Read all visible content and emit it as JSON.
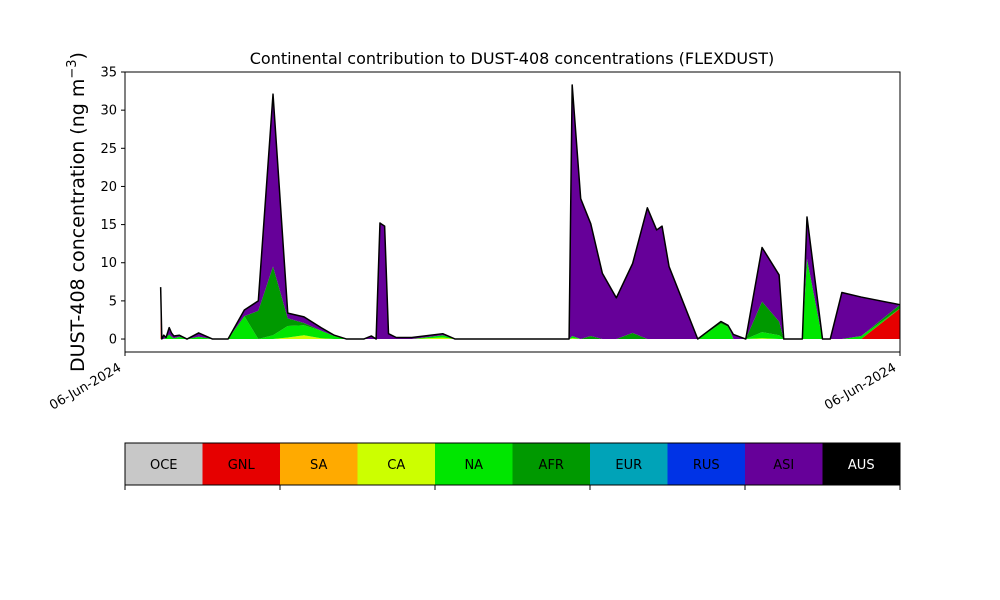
{
  "chart_data": {
    "type": "area",
    "title": "Continental contribution to DUST-408 concentrations (FLEXDUST)",
    "ylabel": "DUST-408 concentration (ng m⁻³)",
    "ylabel_main": "DUST-408 concentration (ng m",
    "ylabel_sup": "−3",
    "ylabel_close": ")",
    "xlabel": "",
    "ylim": [
      -1.7,
      35
    ],
    "yticks": [
      0,
      5,
      10,
      15,
      20,
      25,
      30,
      35
    ],
    "ytick_labels": [
      "0",
      "5",
      "10",
      "15",
      "20",
      "25",
      "30",
      "35"
    ],
    "xlim": [
      0,
      100
    ],
    "xtick_labels": [
      "06-Jun-2024",
      "06-Jun-2024"
    ],
    "grid": false,
    "legend_position": "bottom",
    "legend": [
      {
        "name": "OCE",
        "color": "#c8c8c8",
        "text_color": "#000000"
      },
      {
        "name": "GNL",
        "color": "#e60000",
        "text_color": "#000000"
      },
      {
        "name": "SA",
        "color": "#ffaa00",
        "text_color": "#000000"
      },
      {
        "name": "CA",
        "color": "#ccff00",
        "text_color": "#000000"
      },
      {
        "name": "NA",
        "color": "#00e600",
        "text_color": "#000000"
      },
      {
        "name": "AFR",
        "color": "#009900",
        "text_color": "#000000"
      },
      {
        "name": "EUR",
        "color": "#00a3b8",
        "text_color": "#000000"
      },
      {
        "name": "RUS",
        "color": "#0033e6",
        "text_color": "#000000"
      },
      {
        "name": "ASI",
        "color": "#660099",
        "text_color": "#000000"
      },
      {
        "name": "AUS",
        "color": "#000000",
        "text_color": "#ffffff"
      }
    ],
    "x": [
      4.6,
      4.75,
      5.0,
      5.3,
      5.7,
      6.0,
      6.3,
      7.0,
      8.0,
      9.5,
      11.3,
      13.3,
      15.4,
      17.2,
      19.1,
      21.0,
      23.1,
      25.3,
      27.0,
      28.6,
      30.8,
      31.8,
      32.4,
      32.9,
      33.5,
      34.0,
      35.0,
      37.0,
      41.0,
      42.6,
      44.0,
      45.6,
      48.0,
      53.0,
      57.3,
      57.7,
      58.8,
      60.1,
      61.6,
      63.4,
      65.5,
      67.4,
      68.6,
      69.3,
      70.2,
      73.9,
      76.9,
      77.8,
      78.5,
      80.1,
      82.2,
      84.4,
      85.0,
      85.6,
      86.1,
      87.4,
      88.0,
      90.0,
      91.0,
      92.5,
      95.0,
      100.0
    ],
    "series": [
      {
        "name": "GNL",
        "color": "#e60000",
        "values": [
          3.5,
          0,
          0,
          0,
          0,
          0,
          0,
          0,
          0,
          0,
          0,
          0,
          0,
          0,
          0,
          0,
          0,
          0,
          0,
          0,
          0,
          0,
          0,
          0,
          0,
          0,
          0,
          0,
          0,
          0,
          0,
          0,
          0,
          0,
          0,
          0,
          0,
          0,
          0,
          0,
          0,
          0,
          0,
          0,
          0,
          0,
          0,
          0,
          0,
          0,
          0,
          0,
          0,
          0,
          0,
          0,
          0,
          0,
          0,
          0,
          0,
          4.0
        ]
      },
      {
        "name": "CA",
        "color": "#ccff00",
        "values": [
          0,
          0,
          0,
          0,
          0,
          0,
          0,
          0,
          0,
          0,
          0,
          0,
          0,
          0,
          0,
          0.2,
          0.5,
          0.1,
          0,
          0,
          0,
          0,
          0,
          0,
          0,
          0,
          0,
          0,
          0.2,
          0,
          0,
          0,
          0,
          0,
          0,
          0.1,
          0,
          0,
          0,
          0,
          0,
          0,
          0,
          0,
          0,
          0,
          0,
          0,
          0,
          0,
          0.1,
          0,
          0,
          0,
          0,
          0,
          0,
          0,
          0,
          0,
          0,
          0
        ]
      },
      {
        "name": "NA",
        "color": "#00e600",
        "values": [
          0,
          0,
          0,
          0.2,
          0.6,
          0.3,
          0.1,
          0.3,
          0,
          0.3,
          0,
          0,
          3.0,
          0,
          0.5,
          1.5,
          1.3,
          1.0,
          0.4,
          0,
          0,
          0,
          0,
          0,
          0,
          0,
          0,
          0,
          0.3,
          0,
          0,
          0,
          0,
          0,
          0,
          0.3,
          0,
          0,
          0,
          0,
          0,
          0,
          0,
          0,
          0,
          0,
          2.0,
          1.6,
          0,
          0,
          0.8,
          0.5,
          0,
          0,
          0,
          0,
          10.5,
          0,
          0,
          0,
          0.4,
          0
        ]
      },
      {
        "name": "AFR",
        "color": "#009900",
        "values": [
          0,
          0,
          0,
          0,
          0,
          0,
          0,
          0,
          0,
          0,
          0,
          0,
          0,
          3.7,
          9.0,
          1.0,
          0.3,
          0,
          0,
          0,
          0,
          0,
          0,
          0,
          0,
          0,
          0,
          0,
          0,
          0,
          0,
          0,
          0,
          0,
          0,
          0,
          0,
          0.4,
          0,
          0,
          0.8,
          0,
          0,
          0,
          0,
          0,
          0.3,
          0.2,
          0,
          0,
          4.0,
          1.8,
          0,
          0,
          0,
          0,
          0,
          0,
          0,
          0,
          0,
          0.5
        ]
      },
      {
        "name": "ASI",
        "color": "#660099",
        "values": [
          3.3,
          0,
          0.5,
          0,
          0.9,
          0.5,
          0.3,
          0.2,
          0,
          0.5,
          0,
          0,
          0.8,
          1.3,
          22.6,
          0.7,
          0.8,
          0.4,
          0.1,
          0,
          0,
          0.4,
          0,
          15.2,
          14.8,
          0.7,
          0.2,
          0.2,
          0.2,
          0,
          0,
          0,
          0,
          0,
          0,
          32.9,
          18.4,
          14.7,
          8.6,
          5.4,
          9.1,
          17.2,
          14.3,
          14.8,
          9.5,
          0,
          0,
          0,
          0.6,
          0,
          7.1,
          6.1,
          0,
          0,
          0,
          0,
          5.5,
          0,
          0,
          6.1,
          5.1,
          0
        ]
      }
    ]
  }
}
